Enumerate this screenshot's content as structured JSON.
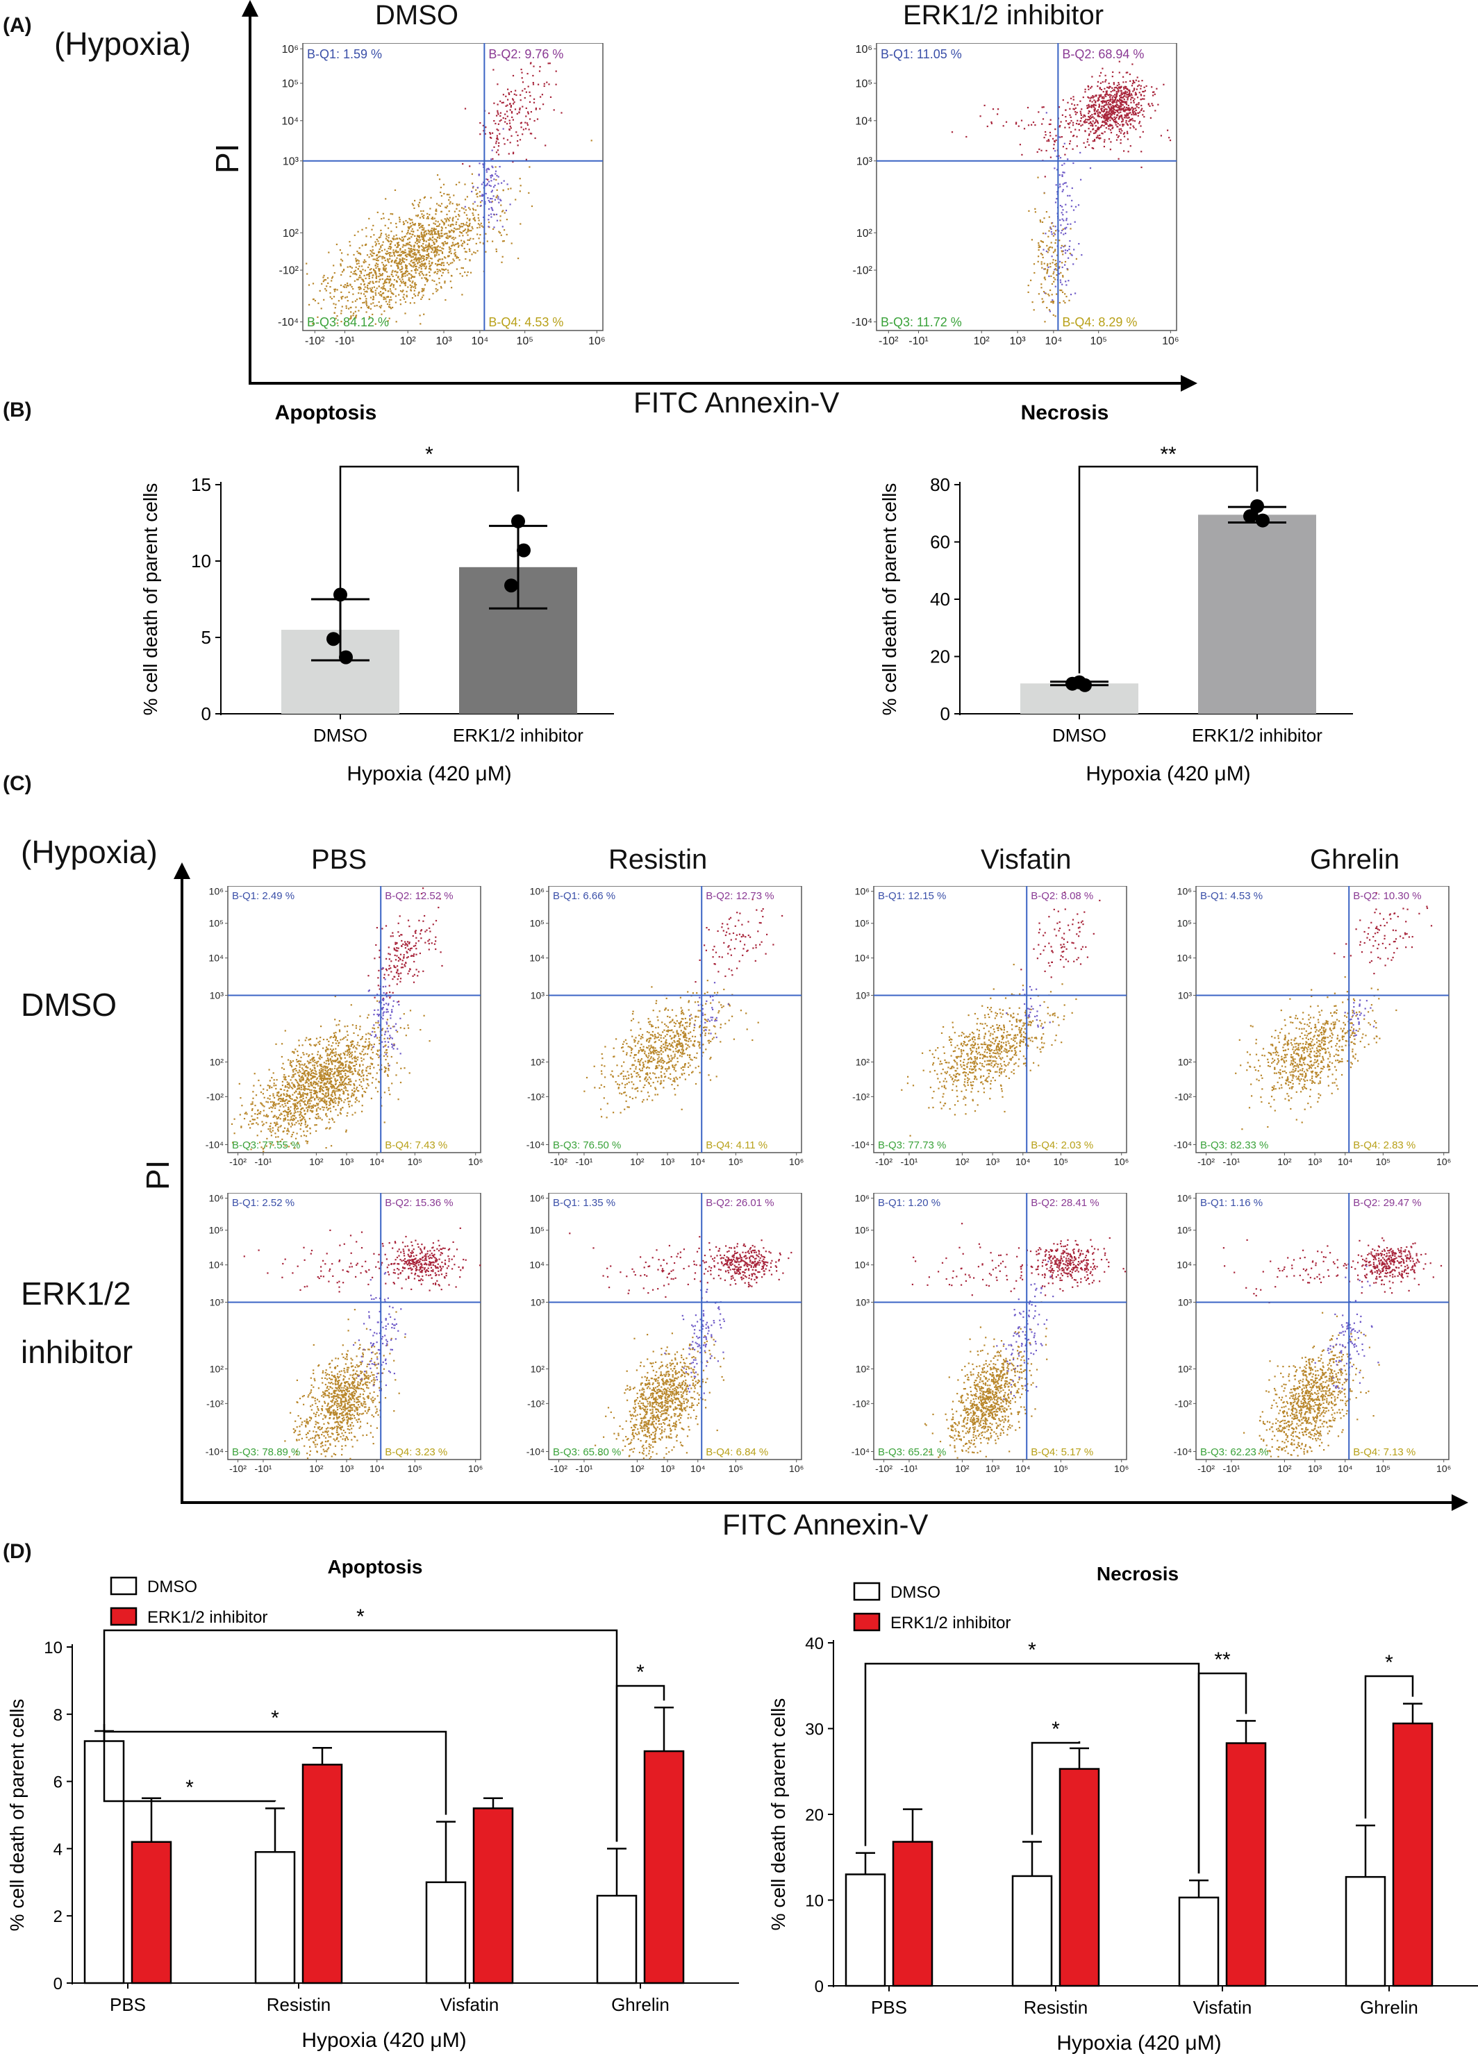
{
  "panels": {
    "A": "(A)",
    "B": "(B)",
    "C": "(C)",
    "D": "(D)"
  },
  "panel_a": {
    "condition": "(Hypoxia)",
    "plots": [
      {
        "title": "DMSO",
        "q1": "B-Q1: 1.59 %",
        "q2": "B-Q2: 9.76 %",
        "q3": "B-Q3: 84.12 %",
        "q4": "B-Q4: 4.53 %",
        "cloud": "dmso"
      },
      {
        "title": "ERK1/2 inhibitor",
        "q1": "B-Q1: 11.05 %",
        "q2": "B-Q2: 68.94 %",
        "q3": "B-Q3: 11.72 %",
        "q4": "B-Q4: 8.29 %",
        "cloud": "erk_a"
      }
    ],
    "y_axis_label": "PI",
    "x_axis_label": "FITC Annexin-V"
  },
  "facs_ticks": {
    "y": [
      "10⁶",
      "10⁵",
      "10⁴",
      "10³",
      "10²",
      "-10²",
      "-10⁴"
    ],
    "x": [
      "-10²",
      "-10¹",
      "10²",
      "10³",
      "10⁴",
      "10⁵",
      "10⁶"
    ]
  },
  "panel_c": {
    "condition": "(Hypoxia)",
    "columns": [
      "PBS",
      "Resistin",
      "Visfatin",
      "Ghrelin"
    ],
    "rows": [
      {
        "label_lines": [
          "DMSO"
        ],
        "plots": [
          {
            "q1": "B-Q1: 2.49 %",
            "q2": "B-Q2: 12.52 %",
            "q3": "B-Q3: 77.55 %",
            "q4": "B-Q4: 7.43 %",
            "cloud": "dmso"
          },
          {
            "q1": "B-Q1: 6.66 %",
            "q2": "B-Q2: 12.73 %",
            "q3": "B-Q3: 76.50 %",
            "q4": "B-Q4: 4.11 %",
            "cloud": "dmso_sparse"
          },
          {
            "q1": "B-Q1: 12.15 %",
            "q2": "B-Q2: 8.08 %",
            "q3": "B-Q3: 77.73 %",
            "q4": "B-Q4: 2.03 %",
            "cloud": "dmso_sparse"
          },
          {
            "q1": "B-Q1: 4.53 %",
            "q2": "B-Q2: 10.30 %",
            "q3": "B-Q3: 82.33 %",
            "q4": "B-Q4: 2.83 %",
            "cloud": "dmso_sparse"
          }
        ]
      },
      {
        "label_lines": [
          "ERK1/2",
          "inhibitor"
        ],
        "plots": [
          {
            "q1": "B-Q1: 2.52 %",
            "q2": "B-Q2: 15.36 %",
            "q3": "B-Q3: 78.89 %",
            "q4": "B-Q4: 3.23 %",
            "cloud": "erk_c"
          },
          {
            "q1": "B-Q1: 1.35 %",
            "q2": "B-Q2: 26.01 %",
            "q3": "B-Q3: 65.80 %",
            "q4": "B-Q4: 6.84 %",
            "cloud": "erk_c"
          },
          {
            "q1": "B-Q1: 1.20 %",
            "q2": "B-Q2: 28.41 %",
            "q3": "B-Q3: 65.21 %",
            "q4": "B-Q4: 5.17 %",
            "cloud": "erk_c"
          },
          {
            "q1": "B-Q1: 1.16 %",
            "q2": "B-Q2: 29.47 %",
            "q3": "B-Q3: 62.23 %",
            "q4": "B-Q4: 7.13 %",
            "cloud": "erk_c"
          }
        ]
      }
    ],
    "y_axis_label": "PI",
    "x_axis_label": "FITC Annexin-V"
  },
  "colors": {
    "quad_line": "#3a63c4",
    "dots_live": "#b8862a",
    "dots_necrotic": "#a8243a",
    "dots_early": "#6f5bc8",
    "q1_text": "#3a4fa8",
    "q2_text": "#8a3a94",
    "q3_text": "#3aa23a",
    "q4_text": "#b8a018",
    "bar_light": "#d7d9d8",
    "bar_dark": "#777777",
    "bar_mid": "#a6a6a8",
    "bar_red": "#e41c23"
  },
  "chart_data": [
    {
      "type": "bar",
      "title": "Apoptosis",
      "categories": [
        "DMSO",
        "ERK1/2 inhibitor"
      ],
      "values": [
        5.5,
        9.6
      ],
      "errors": [
        2.0,
        2.7
      ],
      "points": [
        [
          7.8,
          4.9,
          3.7
        ],
        [
          12.6,
          8.4,
          10.7
        ]
      ],
      "xlabel": "Hypoxia (420 μM)",
      "ylabel": "% cell death of parent cells",
      "ylim": [
        0,
        15
      ],
      "yticks": [
        "0",
        "5",
        "10",
        "15"
      ],
      "significance": [
        {
          "from": 0,
          "to": 1,
          "label": "*"
        }
      ]
    },
    {
      "type": "bar",
      "title": "Necrosis",
      "categories": [
        "DMSO",
        "ERK1/2 inhibitor"
      ],
      "values": [
        10.6,
        69.5
      ],
      "errors": [
        0.6,
        2.7
      ],
      "points": [
        [
          11.0,
          10.5,
          10.0
        ],
        [
          72.5,
          69.0,
          67.5
        ]
      ],
      "xlabel": "Hypoxia (420 μM)",
      "ylabel": "% cell death of parent cells",
      "ylim": [
        0,
        80
      ],
      "yticks": [
        "0",
        "20",
        "40",
        "60",
        "80"
      ],
      "significance": [
        {
          "from": 0,
          "to": 1,
          "label": "**"
        }
      ]
    },
    {
      "type": "bar",
      "title": "Apoptosis",
      "categories": [
        "PBS",
        "Resistin",
        "Visfatin",
        "Ghrelin"
      ],
      "series": [
        {
          "name": "DMSO",
          "values": [
            7.2,
            3.9,
            3.0,
            2.6
          ],
          "errors": [
            0.3,
            1.3,
            1.8,
            1.4
          ]
        },
        {
          "name": "ERK1/2 inhibitor",
          "values": [
            4.2,
            6.5,
            5.2,
            6.9
          ],
          "errors": [
            1.3,
            0.5,
            0.3,
            1.3
          ]
        }
      ],
      "xlabel": "Hypoxia (420 μM)",
      "ylabel": "% cell death of parent cells",
      "ylim": [
        0,
        10
      ],
      "yticks": [
        "0",
        "2",
        "4",
        "6",
        "8",
        "10"
      ],
      "legend": "top-left",
      "significance": [
        {
          "a": [
            0,
            0
          ],
          "b": [
            1,
            0
          ],
          "label": "*"
        },
        {
          "a": [
            0,
            0
          ],
          "b": [
            2,
            0
          ],
          "label": "*"
        },
        {
          "a": [
            0,
            0
          ],
          "b": [
            3,
            0
          ],
          "label": "*"
        },
        {
          "a": [
            3,
            0
          ],
          "b": [
            3,
            1
          ],
          "label": "*"
        }
      ]
    },
    {
      "type": "bar",
      "title": "Necrosis",
      "categories": [
        "PBS",
        "Resistin",
        "Visfatin",
        "Ghrelin"
      ],
      "series": [
        {
          "name": "DMSO",
          "values": [
            13.0,
            12.8,
            10.3,
            12.7
          ],
          "errors": [
            2.5,
            4.0,
            2.0,
            6.0
          ]
        },
        {
          "name": "ERK1/2 inhibitor",
          "values": [
            16.8,
            25.3,
            28.3,
            30.6
          ],
          "errors": [
            3.8,
            2.4,
            2.6,
            2.3
          ]
        }
      ],
      "xlabel": "Hypoxia (420 μM)",
      "ylabel": "% cell death of parent cells",
      "ylim": [
        0,
        40
      ],
      "yticks": [
        "0",
        "10",
        "20",
        "30",
        "40"
      ],
      "legend": "top-left",
      "significance": [
        {
          "a": [
            0,
            0
          ],
          "b": [
            2,
            0
          ],
          "label": "*"
        },
        {
          "a": [
            1,
            0
          ],
          "b": [
            1,
            1
          ],
          "label": "*"
        },
        {
          "a": [
            2,
            0
          ],
          "b": [
            2,
            1
          ],
          "label": "**"
        },
        {
          "a": [
            3,
            0
          ],
          "b": [
            3,
            1
          ],
          "label": "*"
        }
      ]
    }
  ]
}
